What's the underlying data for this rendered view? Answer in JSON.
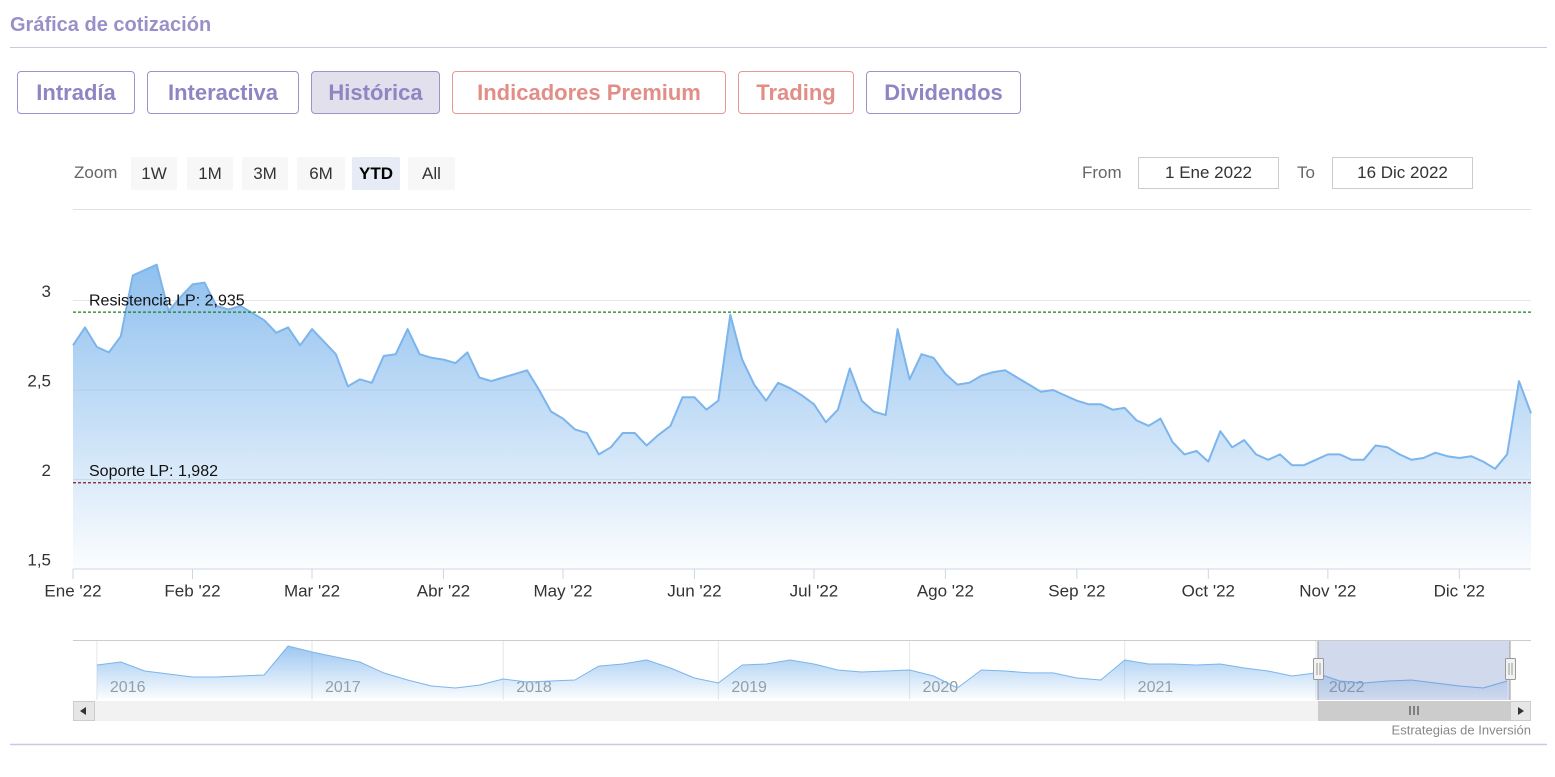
{
  "section_title": "Gráfica de cotización",
  "tabs": [
    "Intradía",
    "Interactiva",
    "Histórica",
    "Indicadores Premium",
    "Trading",
    "Dividendos"
  ],
  "range_selector": {
    "label": "Zoom",
    "buttons": [
      "1W",
      "1M",
      "3M",
      "6M",
      "YTD",
      "All"
    ],
    "from_label": "From",
    "from": "1 Ene 2022",
    "to_label": "To",
    "to": "16 Dic 2022"
  },
  "credits": "Estrategias de Inversión",
  "chart_data": [
    {
      "type": "area",
      "color": "#7cb5ec",
      "categories": [
        "Ene '22",
        null,
        null,
        null,
        null,
        null,
        null,
        null,
        null,
        null,
        "Feb '22",
        null,
        null,
        null,
        null,
        null,
        null,
        null,
        null,
        null,
        "Mar '22",
        null,
        null,
        null,
        null,
        null,
        null,
        null,
        null,
        null,
        null,
        "Abr '22",
        null,
        null,
        null,
        null,
        null,
        null,
        null,
        null,
        null,
        "May '22",
        null,
        null,
        null,
        null,
        null,
        null,
        null,
        null,
        null,
        null,
        "Jun '22",
        null,
        null,
        null,
        null,
        null,
        null,
        null,
        null,
        null,
        "Jul '22",
        null,
        null,
        null,
        null,
        null,
        null,
        null,
        null,
        null,
        null,
        "Ago '22",
        null,
        null,
        null,
        null,
        null,
        null,
        null,
        null,
        null,
        null,
        "Sep '22",
        null,
        null,
        null,
        null,
        null,
        null,
        null,
        null,
        null,
        null,
        "Oct '22",
        null,
        null,
        null,
        null,
        null,
        null,
        null,
        null,
        null,
        "Nov '22",
        null,
        null,
        null,
        null,
        null,
        null,
        null,
        null,
        null,
        null,
        "Dic '22",
        null,
        null,
        null,
        null,
        null,
        null
      ],
      "values": [
        2.75,
        2.85,
        2.74,
        2.71,
        2.8,
        3.14,
        3.17,
        3.2,
        2.94,
        3.02,
        3.09,
        3.1,
        2.97,
        2.95,
        2.97,
        2.93,
        2.89,
        2.82,
        2.85,
        2.75,
        2.84,
        2.77,
        2.7,
        2.52,
        2.56,
        2.54,
        2.69,
        2.7,
        2.84,
        2.7,
        2.68,
        2.67,
        2.65,
        2.71,
        2.57,
        2.55,
        2.57,
        2.59,
        2.61,
        2.5,
        2.38,
        2.34,
        2.28,
        2.26,
        2.14,
        2.18,
        2.26,
        2.26,
        2.19,
        2.25,
        2.3,
        2.46,
        2.46,
        2.39,
        2.44,
        2.92,
        2.67,
        2.53,
        2.44,
        2.54,
        2.51,
        2.47,
        2.42,
        2.32,
        2.39,
        2.62,
        2.44,
        2.38,
        2.36,
        2.84,
        2.56,
        2.7,
        2.68,
        2.59,
        2.53,
        2.54,
        2.58,
        2.6,
        2.61,
        2.57,
        2.53,
        2.49,
        2.5,
        2.47,
        2.44,
        2.42,
        2.42,
        2.39,
        2.4,
        2.33,
        2.3,
        2.34,
        2.21,
        2.14,
        2.16,
        2.1,
        2.27,
        2.18,
        2.22,
        2.14,
        2.11,
        2.14,
        2.08,
        2.08,
        2.11,
        2.14,
        2.14,
        2.11,
        2.11,
        2.19,
        2.18,
        2.14,
        2.11,
        2.12,
        2.15,
        2.13,
        2.12,
        2.13,
        2.1,
        2.06,
        2.14,
        2.55,
        2.37
      ],
      "ylim": [
        1.5,
        3.5
      ],
      "yticks": [
        {
          "value": 1.5,
          "label": "1,5"
        },
        2,
        {
          "value": 2.5,
          "label": "2,5"
        },
        3
      ],
      "grid": true,
      "plot_lines": [
        {
          "label": "Resistencia LP: 2,935",
          "value": 2.935,
          "color": "#1a7f1a"
        },
        {
          "label": "Soporte LP: 1,982",
          "value": 1.982,
          "color": "#8b1a1a"
        }
      ]
    },
    {
      "type": "area",
      "color": "#7cb5ec",
      "categories": [
        null,
        "2016",
        null,
        null,
        null,
        null,
        null,
        null,
        null,
        null,
        "2017",
        null,
        null,
        null,
        null,
        null,
        null,
        null,
        "2018",
        null,
        null,
        null,
        null,
        null,
        null,
        null,
        null,
        "2019",
        null,
        null,
        null,
        null,
        null,
        null,
        null,
        "2020",
        null,
        null,
        null,
        null,
        null,
        null,
        null,
        null,
        "2021",
        null,
        null,
        null,
        null,
        null,
        null,
        null,
        "2022",
        null,
        null,
        null,
        null,
        null,
        null,
        null,
        null,
        null
      ],
      "values": [
        null,
        3.98,
        4.23,
        3.47,
        3.22,
        2.97,
        2.97,
        3.05,
        3.14,
        5.58,
        5.07,
        4.65,
        4.23,
        3.31,
        2.72,
        2.21,
        2.04,
        2.29,
        2.8,
        2.55,
        2.63,
        2.72,
        3.89,
        4.06,
        4.4,
        3.73,
        2.88,
        2.46,
        3.98,
        4.06,
        4.4,
        4.06,
        3.56,
        3.39,
        3.47,
        3.56,
        3.05,
        2.04,
        3.56,
        3.47,
        3.31,
        3.31,
        2.88,
        2.72,
        4.4,
        4.06,
        4.06,
        3.98,
        4.06,
        3.73,
        3.47,
        3.05,
        3.31,
        2.63,
        2.46,
        2.63,
        2.72,
        2.46,
        2.21,
        2.04,
        2.63,
        null
      ],
      "ylim": [
        1.2,
        6.0
      ]
    }
  ]
}
